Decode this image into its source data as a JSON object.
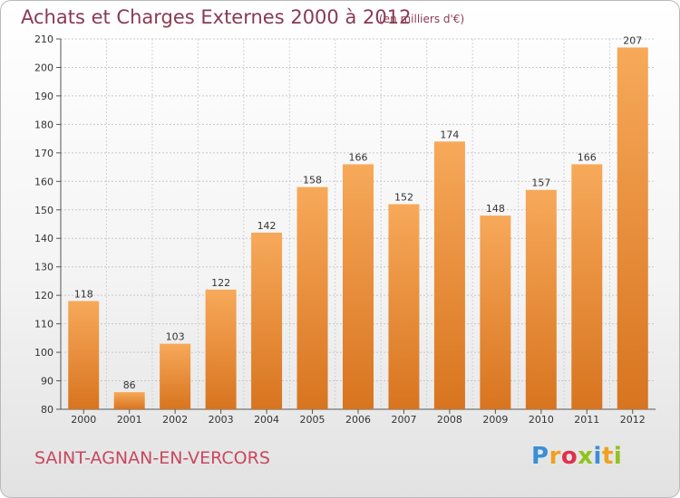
{
  "title": "Achats et Charges Externes 2000 à 2012",
  "subtitle": "(en milliers d'€)",
  "location": "SAINT-AGNAN-EN-VERCORS",
  "logo": {
    "text": "Proxiti",
    "colors": [
      "#3a8fd6",
      "#f0a020",
      "#e0304a",
      "#8fc41a"
    ]
  },
  "chart_data": {
    "type": "bar",
    "categories": [
      "2000",
      "2001",
      "2002",
      "2003",
      "2004",
      "2005",
      "2006",
      "2007",
      "2008",
      "2009",
      "2010",
      "2011",
      "2012"
    ],
    "values": [
      118,
      86,
      103,
      122,
      142,
      158,
      166,
      152,
      174,
      148,
      157,
      166,
      207
    ],
    "title": "Achats et Charges Externes 2000 à 2012",
    "subtitle": "(en milliers d'€)",
    "xlabel": "",
    "ylabel": "",
    "ylim": [
      80,
      210
    ],
    "yticks": [
      80,
      90,
      100,
      110,
      120,
      130,
      140,
      150,
      160,
      170,
      180,
      190,
      200,
      210
    ],
    "grid": true,
    "bar_color": "#e8862e"
  }
}
